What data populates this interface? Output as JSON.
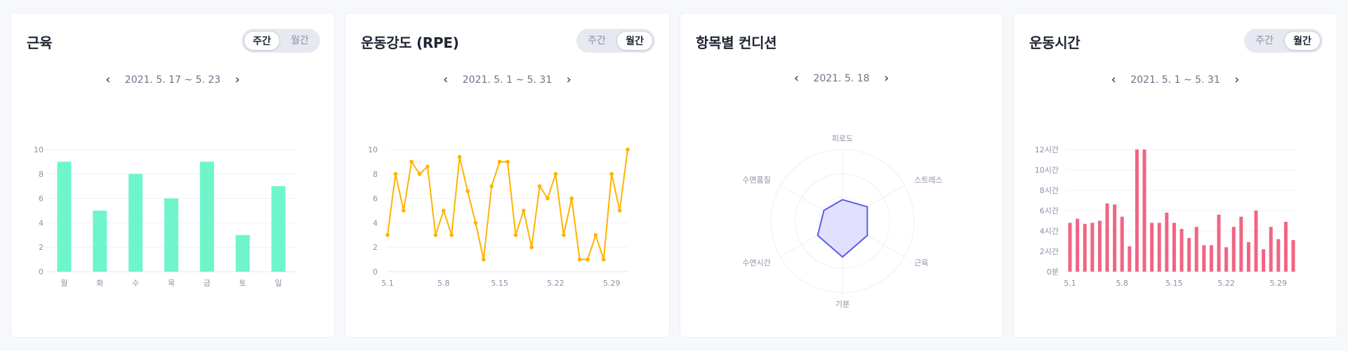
{
  "toggle": {
    "weekly": "주간",
    "monthly": "월간"
  },
  "cards": [
    {
      "title": "근육",
      "active_toggle": "weekly",
      "date_range": "2021. 5. 17 ~ 5. 23"
    },
    {
      "title": "운동강도 (RPE)",
      "active_toggle": "monthly",
      "date_range": "2021. 5. 1 ~ 5. 31"
    },
    {
      "title": "항목별 컨디션",
      "date_range": "2021. 5. 18"
    },
    {
      "title": "운동시간",
      "active_toggle": "monthly",
      "date_range": "2021. 5. 1 ~ 5. 31"
    }
  ],
  "nav": {
    "prev": "‹",
    "next": "›"
  },
  "colors": {
    "bar_green": "#6ff5cb",
    "line_orange": "#ffb300",
    "radar_stroke": "#5b5de8",
    "radar_fill": "#dcdcff",
    "bar_red": "#f06583"
  },
  "chart_data": [
    {
      "type": "bar",
      "categories": [
        "월",
        "화",
        "수",
        "목",
        "금",
        "토",
        "일"
      ],
      "values": [
        9,
        5,
        8,
        6,
        9,
        3,
        7
      ],
      "yticks": [
        "0",
        "2",
        "4",
        "6",
        "8",
        "10"
      ],
      "ylim": [
        0,
        10
      ],
      "grid": true
    },
    {
      "type": "line",
      "x": [
        1,
        2,
        3,
        4,
        5,
        6,
        7,
        8,
        9,
        10,
        11,
        12,
        13,
        14,
        15,
        16,
        17,
        18,
        19,
        20,
        21,
        22,
        23,
        24,
        25,
        26,
        27,
        28,
        29,
        30,
        31
      ],
      "values": [
        3,
        8,
        5,
        9,
        8,
        8.6,
        3,
        5,
        3,
        9.4,
        6.6,
        4,
        1,
        7,
        9,
        9,
        3,
        5,
        2,
        7,
        6,
        8,
        3,
        6,
        1,
        1,
        3,
        1,
        8,
        5,
        10
      ],
      "xticks": [
        "5.1",
        "5.8",
        "5.15",
        "5.22",
        "5.29"
      ],
      "yticks": [
        "0",
        "2",
        "4",
        "6",
        "8",
        "10"
      ],
      "ylim": [
        0,
        10
      ],
      "grid": true
    },
    {
      "type": "radar",
      "axes": [
        "피로도",
        "스트레스",
        "근육",
        "기분",
        "수연시간",
        "수면품질"
      ],
      "values": [
        3,
        4,
        4,
        5,
        4,
        3
      ],
      "max": 10,
      "grid": true
    },
    {
      "type": "bar",
      "x": [
        1,
        2,
        3,
        4,
        5,
        6,
        7,
        8,
        9,
        10,
        11,
        12,
        13,
        14,
        15,
        16,
        17,
        18,
        19,
        20,
        21,
        22,
        23,
        24,
        25,
        26,
        27,
        28,
        29,
        30,
        31
      ],
      "values": [
        4.8,
        5.2,
        4.7,
        4.8,
        5,
        6.7,
        6.6,
        5.4,
        2.5,
        12,
        12,
        4.8,
        4.8,
        5.8,
        4.8,
        4.2,
        3.3,
        4.4,
        2.6,
        2.6,
        5.6,
        2.4,
        4.4,
        5.4,
        2.9,
        6,
        2.2,
        4.4,
        3.2,
        4.9,
        3.1
      ],
      "xticks": [
        "5.1",
        "5.8",
        "5.15",
        "5.22",
        "5.29"
      ],
      "yticks": [
        "0분",
        "2시간",
        "4시간",
        "6시간",
        "8시간",
        "10시간",
        "12시간"
      ],
      "ylim": [
        0,
        12
      ],
      "grid": true
    }
  ]
}
